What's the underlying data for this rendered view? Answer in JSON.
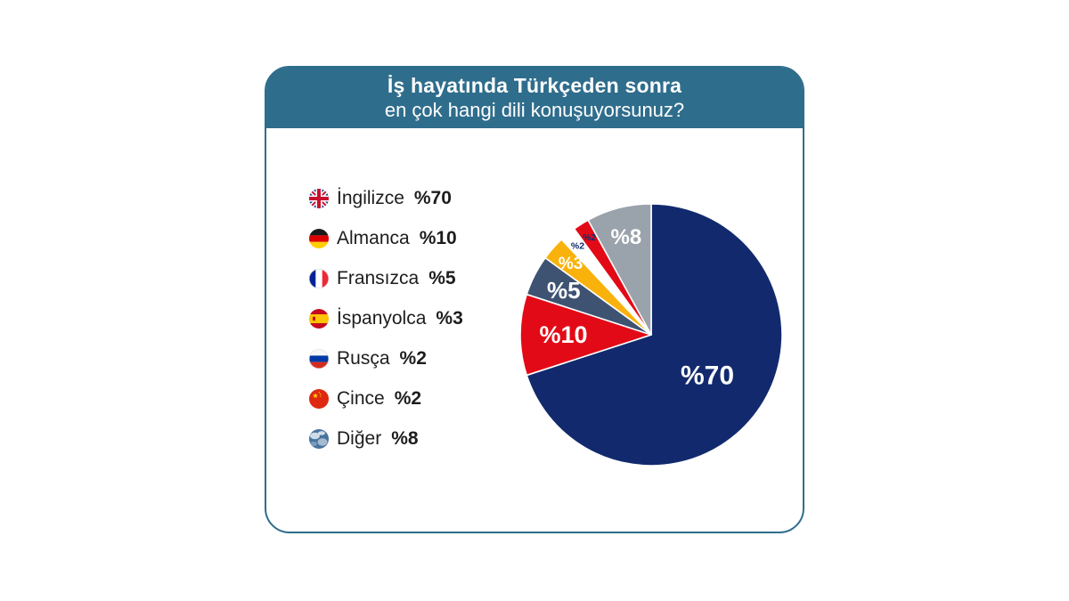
{
  "header": {
    "title_line1": "İş hayatında Türkçeden sonra",
    "title_line2": "en çok hangi dili konuşuyorsunuz?"
  },
  "theme": {
    "header_bg": "#2f6d8c",
    "card_border": "#2f6d8c",
    "page_bg": "#ffffff",
    "text_color": "#1d1d1f",
    "slice_stroke": "#ffffff"
  },
  "legend": {
    "items": [
      {
        "icon": "uk-flag",
        "label": "İngilizce",
        "value": "%70"
      },
      {
        "icon": "germany-flag",
        "label": "Almanca",
        "value": "%10"
      },
      {
        "icon": "france-flag",
        "label": "Fransızca",
        "value": "%5"
      },
      {
        "icon": "spain-flag",
        "label": "İspanyolca",
        "value": "%3"
      },
      {
        "icon": "russia-flag",
        "label": "Rusça",
        "value": "%2"
      },
      {
        "icon": "china-flag",
        "label": "Çince",
        "value": "%2"
      },
      {
        "icon": "globe-icon",
        "label": "Diğer",
        "value": "%8"
      }
    ]
  },
  "chart_data": {
    "type": "pie",
    "title": "İş hayatında Türkçeden sonra en çok hangi dili konuşuyorsunuz?",
    "unit": "percent",
    "start_angle_deg": 0,
    "direction": "clockwise",
    "legend_position": "left",
    "categories": [
      "İngilizce",
      "Almanca",
      "Fransızca",
      "İspanyolca",
      "Rusça",
      "Çince",
      "Diğer"
    ],
    "values": [
      70,
      10,
      5,
      3,
      2,
      2,
      8
    ],
    "slices": [
      {
        "label": "İngilizce",
        "value": 70,
        "display": "%70",
        "color": "#122a6d",
        "label_color": "#ffffff"
      },
      {
        "label": "Almanca",
        "value": 10,
        "display": "%10",
        "color": "#e30a17",
        "label_color": "#ffffff"
      },
      {
        "label": "Fransızca",
        "value": 5,
        "display": "%5",
        "color": "#3e5372",
        "label_color": "#ffffff"
      },
      {
        "label": "İspanyolca",
        "value": 3,
        "display": "%3",
        "color": "#f9b20c",
        "label_color": "#ffffff"
      },
      {
        "label": "Rusça",
        "value": 2,
        "display": "%2",
        "color": "#ffffff",
        "label_color": "#122a6d"
      },
      {
        "label": "Çince",
        "value": 2,
        "display": "%2",
        "color": "#e30a17",
        "label_color": "#122a6d"
      },
      {
        "label": "Diğer",
        "value": 8,
        "display": "%8",
        "color": "#9aa2ab",
        "label_color": "#ffffff"
      }
    ]
  }
}
